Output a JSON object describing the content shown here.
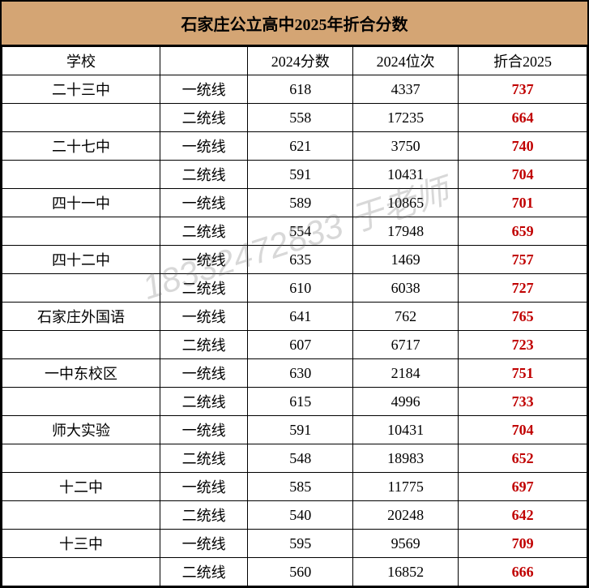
{
  "title": "石家庄公立高中2025年折合分数",
  "watermark": "18332472833 于老师",
  "headers": {
    "school": "学校",
    "line": "",
    "score2024": "2024分数",
    "rank2024": "2024位次",
    "result2025": "折合2025"
  },
  "colors": {
    "title_bg": "#d4a574",
    "border": "#000000",
    "result_text": "#c00000",
    "watermark": "rgba(100,100,100,0.25)"
  },
  "schools": [
    {
      "name": "二十三中",
      "lines": [
        {
          "type": "一统线",
          "score": "618",
          "rank": "4337",
          "result": "737"
        },
        {
          "type": "二统线",
          "score": "558",
          "rank": "17235",
          "result": "664"
        }
      ]
    },
    {
      "name": "二十七中",
      "lines": [
        {
          "type": "一统线",
          "score": "621",
          "rank": "3750",
          "result": "740"
        },
        {
          "type": "二统线",
          "score": "591",
          "rank": "10431",
          "result": "704"
        }
      ]
    },
    {
      "name": "四十一中",
      "lines": [
        {
          "type": "一统线",
          "score": "589",
          "rank": "10865",
          "result": "701"
        },
        {
          "type": "二统线",
          "score": "554",
          "rank": "17948",
          "result": "659"
        }
      ]
    },
    {
      "name": "四十二中",
      "lines": [
        {
          "type": "一统线",
          "score": "635",
          "rank": "1469",
          "result": "757"
        },
        {
          "type": "二统线",
          "score": "610",
          "rank": "6038",
          "result": "727"
        }
      ]
    },
    {
      "name": "石家庄外国语",
      "lines": [
        {
          "type": "一统线",
          "score": "641",
          "rank": "762",
          "result": "765"
        },
        {
          "type": "二统线",
          "score": "607",
          "rank": "6717",
          "result": "723"
        }
      ]
    },
    {
      "name": "一中东校区",
      "lines": [
        {
          "type": "一统线",
          "score": "630",
          "rank": "2184",
          "result": "751"
        },
        {
          "type": "二统线",
          "score": "615",
          "rank": "4996",
          "result": "733"
        }
      ]
    },
    {
      "name": "师大实验",
      "lines": [
        {
          "type": "一统线",
          "score": "591",
          "rank": "10431",
          "result": "704"
        },
        {
          "type": "二统线",
          "score": "548",
          "rank": "18983",
          "result": "652"
        }
      ]
    },
    {
      "name": "十二中",
      "lines": [
        {
          "type": "一统线",
          "score": "585",
          "rank": "11775",
          "result": "697"
        },
        {
          "type": "二统线",
          "score": "540",
          "rank": "20248",
          "result": "642"
        }
      ]
    },
    {
      "name": "十三中",
      "lines": [
        {
          "type": "一统线",
          "score": "595",
          "rank": "9569",
          "result": "709"
        },
        {
          "type": "二统线",
          "score": "560",
          "rank": "16852",
          "result": "666"
        }
      ]
    }
  ]
}
